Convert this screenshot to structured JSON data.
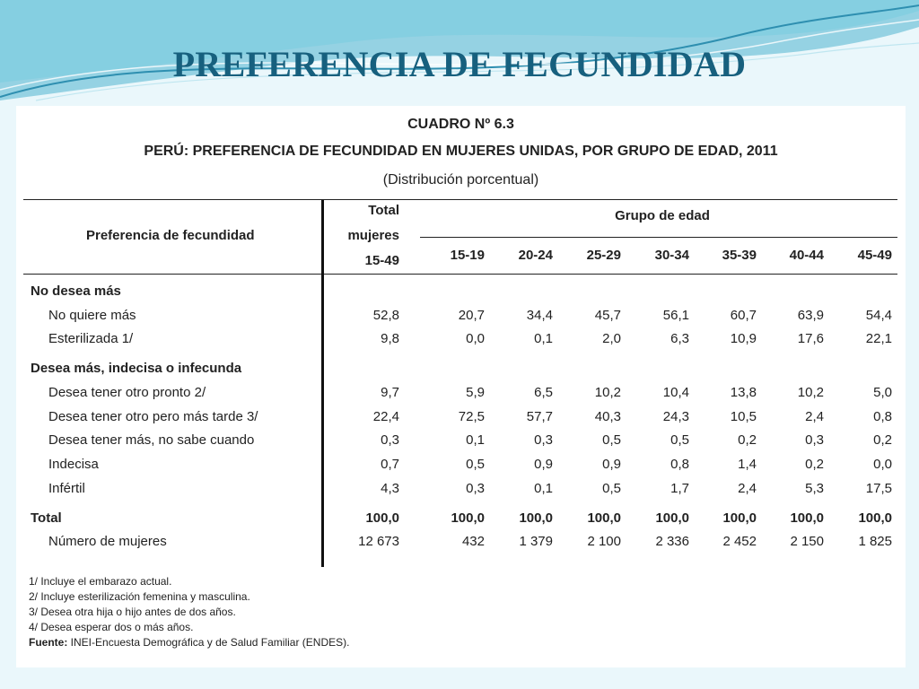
{
  "slide": {
    "title": "PREFERENCIA DE FECUNDIDAD",
    "bg_color": "#eaf7fb",
    "title_color": "#17607e"
  },
  "table": {
    "caption_number": "CUADRO Nº 6.3",
    "caption_title": "PERÚ: PREFERENCIA DE FECUNDIDAD EN MUJERES UNIDAS, POR GRUPO DE EDAD, 2011",
    "caption_subtitle": "(Distribución porcentual)",
    "header_row_label": "Preferencia de fecundidad",
    "header_total": [
      "Total",
      "mujeres",
      "15-49"
    ],
    "header_group": "Grupo de edad",
    "age_groups": [
      "15-19",
      "20-24",
      "25-29",
      "30-34",
      "35-39",
      "40-44",
      "45-49"
    ],
    "rows": [
      {
        "label": "No desea más",
        "section": true,
        "values": []
      },
      {
        "label": "No quiere más",
        "values": [
          "52,8",
          "20,7",
          "34,4",
          "45,7",
          "56,1",
          "60,7",
          "63,9",
          "54,4"
        ]
      },
      {
        "label": "Esterilizada 1/",
        "values": [
          "9,8",
          "0,0",
          "0,1",
          "2,0",
          "6,3",
          "10,9",
          "17,6",
          "22,1"
        ]
      },
      {
        "label": "Desea más, indecisa o infecunda",
        "section": true,
        "values": []
      },
      {
        "label": "Desea tener otro pronto 2/",
        "values": [
          "9,7",
          "5,9",
          "6,5",
          "10,2",
          "10,4",
          "13,8",
          "10,2",
          "5,0"
        ]
      },
      {
        "label": "Desea tener otro pero más tarde 3/",
        "values": [
          "22,4",
          "72,5",
          "57,7",
          "40,3",
          "24,3",
          "10,5",
          "2,4",
          "0,8"
        ]
      },
      {
        "label": "Desea tener más, no sabe cuando",
        "values": [
          "0,3",
          "0,1",
          "0,3",
          "0,5",
          "0,5",
          "0,2",
          "0,3",
          "0,2"
        ]
      },
      {
        "label": "Indecisa",
        "values": [
          "0,7",
          "0,5",
          "0,9",
          "0,9",
          "0,8",
          "1,4",
          "0,2",
          "0,0"
        ]
      },
      {
        "label": "Infértil",
        "values": [
          "4,3",
          "0,3",
          "0,1",
          "0,5",
          "1,7",
          "2,4",
          "5,3",
          "17,5"
        ]
      },
      {
        "label": "Total",
        "section": true,
        "bold_values": true,
        "values": [
          "100,0",
          "100,0",
          "100,0",
          "100,0",
          "100,0",
          "100,0",
          "100,0",
          "100,0"
        ]
      },
      {
        "label": "Número de mujeres",
        "values": [
          "12 673",
          "432",
          "1 379",
          "2 100",
          "2 336",
          "2 452",
          "2 150",
          "1 825"
        ]
      }
    ],
    "notes": [
      "1/ Incluye el embarazo actual.",
      "2/ Incluye esterilización femenina y masculina.",
      "3/ Desea otra hija o hijo antes de dos años.",
      "4/ Desea esperar dos o más años."
    ],
    "source_label": "Fuente:",
    "source_text": " INEI-Encuesta Demográfica y de Salud Familiar (ENDES)."
  }
}
